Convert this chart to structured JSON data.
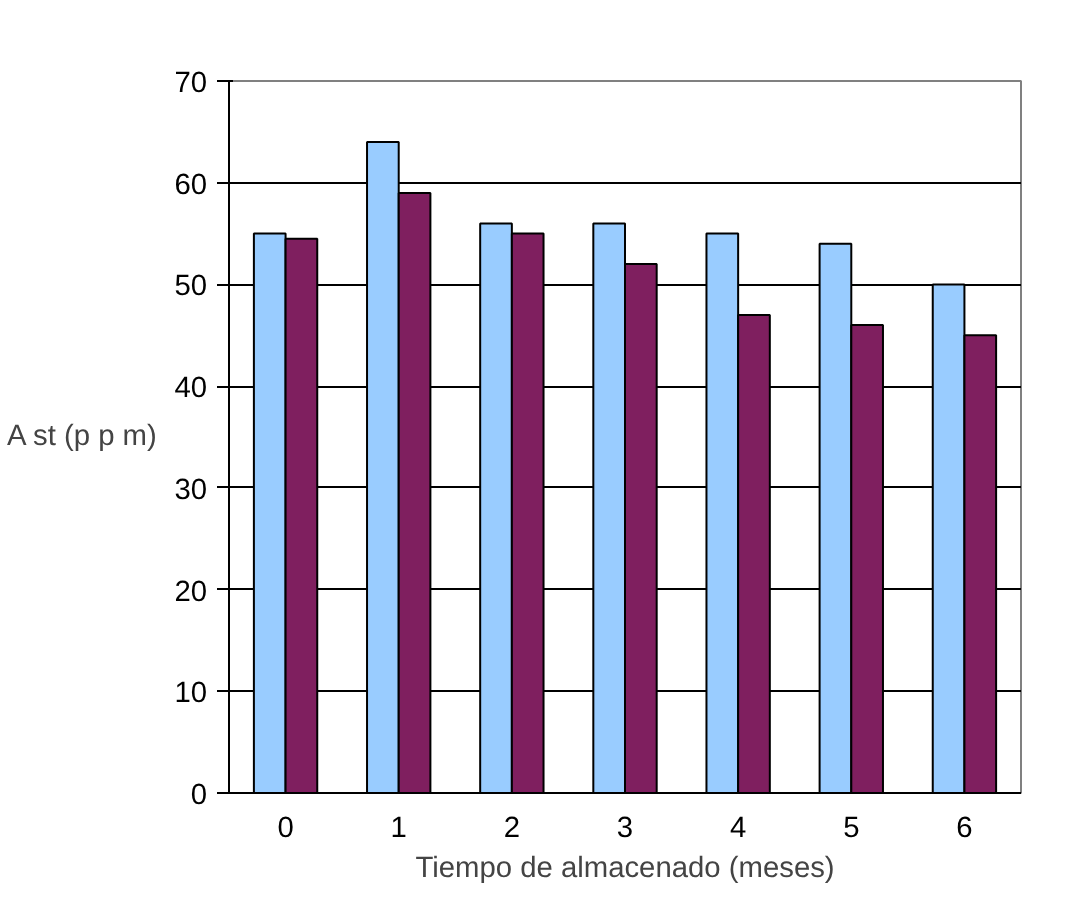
{
  "chart_data": {
    "type": "bar",
    "xlabel": "Tiempo de almacenado (meses)",
    "ylabel": "A st (p p m)",
    "categories": [
      "0",
      "1",
      "2",
      "3",
      "4",
      "5",
      "6"
    ],
    "series": [
      {
        "color": "#99ccff",
        "values": [
          55,
          64,
          56,
          56,
          55,
          54,
          50
        ]
      },
      {
        "color": "#7f1f5f",
        "values": [
          54.5,
          59,
          55,
          52,
          47,
          46,
          45
        ]
      }
    ],
    "ylim": [
      0,
      70
    ],
    "yticks": [
      0,
      10,
      20,
      30,
      40,
      50,
      60,
      70
    ],
    "grid": "y"
  }
}
